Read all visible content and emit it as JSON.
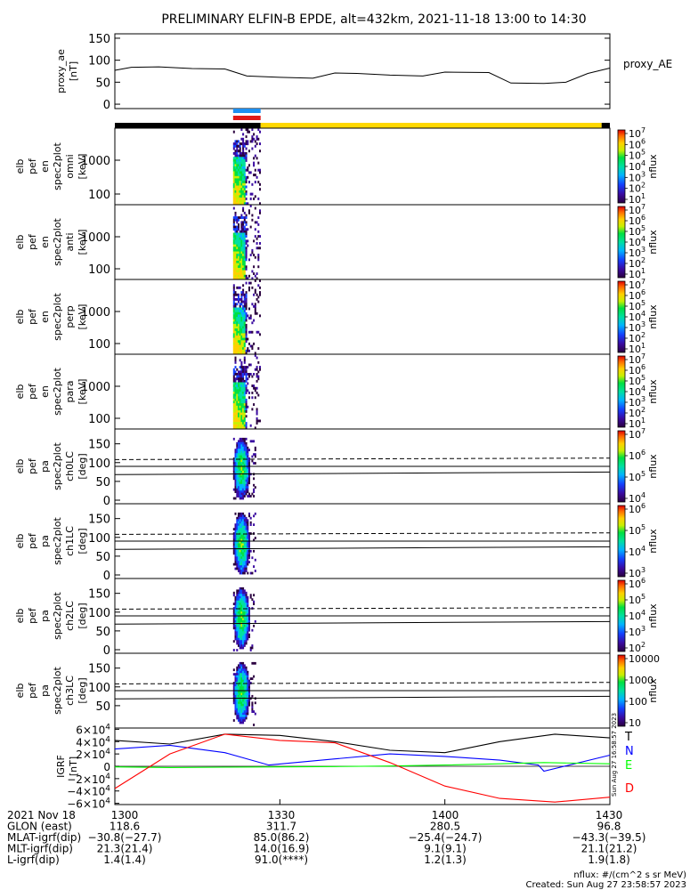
{
  "title": "PRELIMINARY ELFIN-B EPDE, alt=432km, 2021-11-18 13:00 to 14:30",
  "chart_data": [
    {
      "type": "line",
      "panel": "proxy_ae",
      "ylabel": [
        "proxy_ae",
        "[nT]"
      ],
      "series_label": "proxy_AE",
      "yticks": [
        "150",
        "100",
        "50",
        "0"
      ],
      "ylim": [
        -10,
        160
      ],
      "x_minutes": [
        0,
        3,
        8,
        14,
        20,
        24,
        30,
        36,
        40,
        44,
        50,
        56,
        60,
        68,
        72,
        78,
        82,
        86,
        90
      ],
      "values": [
        77,
        84,
        85,
        81,
        80,
        64,
        61,
        59,
        71,
        70,
        66,
        64,
        73,
        72,
        48,
        47,
        50,
        70,
        82
      ]
    },
    {
      "type": "heatmap",
      "panel": "omni",
      "ylabel": [
        "elb",
        "pef",
        "en",
        "spec2plot",
        "omni",
        "[keV]"
      ],
      "yticks": [
        "1000",
        "100"
      ],
      "cbar_ticks": [
        "10^7",
        "10^6",
        "10^5",
        "10^4",
        "10^3",
        "10^2",
        "10^1"
      ],
      "cbar_label": "nflux",
      "cbar_range": [
        1,
        7
      ]
    },
    {
      "type": "heatmap",
      "panel": "anti",
      "ylabel": [
        "elb",
        "pef",
        "en",
        "spec2plot",
        "anti",
        "[keV]"
      ],
      "yticks": [
        "1000",
        "100"
      ],
      "cbar_ticks": [
        "10^7",
        "10^6",
        "10^5",
        "10^4",
        "10^3",
        "10^2",
        "10^1"
      ],
      "cbar_label": "nflux",
      "cbar_range": [
        1,
        7
      ]
    },
    {
      "type": "heatmap",
      "panel": "perp",
      "ylabel": [
        "elb",
        "pef",
        "en",
        "spec2plot",
        "perp",
        "[keV]"
      ],
      "yticks": [
        "1000",
        "100"
      ],
      "cbar_ticks": [
        "10^7",
        "10^6",
        "10^5",
        "10^4",
        "10^3",
        "10^2",
        "10^1"
      ],
      "cbar_label": "nflux",
      "cbar_range": [
        1,
        7
      ]
    },
    {
      "type": "heatmap",
      "panel": "para",
      "ylabel": [
        "elb",
        "pef",
        "en",
        "spec2plot",
        "para",
        "[keV]"
      ],
      "yticks": [
        "1000",
        "100"
      ],
      "cbar_ticks": [
        "10^7",
        "10^6",
        "10^5",
        "10^4",
        "10^3",
        "10^2",
        "10^1"
      ],
      "cbar_label": "nflux",
      "cbar_range": [
        1,
        7
      ]
    },
    {
      "type": "heatmap",
      "panel": "ch0LC",
      "ylabel": [
        "elb",
        "pef",
        "pa",
        "spec2plot",
        "ch0LC",
        "[deg]"
      ],
      "yticks": [
        "150",
        "100",
        "50",
        "0"
      ],
      "cbar_ticks": [
        "10^7",
        "10^6",
        "10^5",
        "10^4"
      ],
      "cbar_label": "nflux",
      "cbar_range": [
        3.5,
        7
      ]
    },
    {
      "type": "heatmap",
      "panel": "ch1LC",
      "ylabel": [
        "elb",
        "pef",
        "pa",
        "spec2plot",
        "ch1LC",
        "[deg]"
      ],
      "yticks": [
        "150",
        "100",
        "50",
        "0"
      ],
      "cbar_ticks": [
        "10^6",
        "10^5",
        "10^4",
        "10^3"
      ],
      "cbar_label": "nflux",
      "cbar_range": [
        2.8,
        6.5
      ]
    },
    {
      "type": "heatmap",
      "panel": "ch2LC",
      "ylabel": [
        "elb",
        "pef",
        "pa",
        "spec2plot",
        "ch2LC",
        "[deg]"
      ],
      "yticks": [
        "150",
        "100",
        "50",
        "0"
      ],
      "cbar_ticks": [
        "10^6",
        "10^5",
        "10^4",
        "10^3",
        "10^2"
      ],
      "cbar_label": "nflux",
      "cbar_range": [
        1.8,
        6.5
      ]
    },
    {
      "type": "heatmap",
      "panel": "ch3LC",
      "ylabel": [
        "elb",
        "pef",
        "pa",
        "spec2plot",
        "ch3LC",
        "[deg]"
      ],
      "yticks": [
        "150",
        "100",
        "50"
      ],
      "cbar_ticks": [
        "10000",
        "1000",
        "100",
        "10"
      ],
      "cbar_label": "nflux",
      "cbar_range": [
        1,
        4.5
      ]
    },
    {
      "type": "line",
      "panel": "IGRF",
      "ylabel": [
        "IGRF",
        "[nT]"
      ],
      "yticks": [
        "6×10^4",
        "4×10^4",
        "2×10^4",
        "0",
        "−2×10^4",
        "−4×10^4",
        "−6×10^4"
      ],
      "ylim": [
        -62000,
        62000
      ],
      "series": [
        {
          "name": "T",
          "color": "#000000",
          "x_minutes": [
            0,
            10,
            20,
            30,
            40,
            50,
            60,
            70,
            80,
            90
          ],
          "values": [
            42000,
            36000,
            52000,
            50000,
            40000,
            26000,
            22000,
            40000,
            52000,
            46000
          ]
        },
        {
          "name": "N",
          "color": "#0000ff",
          "x_minutes": [
            0,
            10,
            20,
            28,
            40,
            50,
            60,
            70,
            77,
            78,
            90
          ],
          "values": [
            28000,
            34000,
            22000,
            2000,
            12000,
            20000,
            16000,
            10000,
            2000,
            -8000,
            18000
          ]
        },
        {
          "name": "E",
          "color": "#00ff00",
          "x_minutes": [
            0,
            10,
            20,
            30,
            40,
            50,
            60,
            70,
            78,
            90
          ],
          "values": [
            -1000,
            -2000,
            -1500,
            -1000,
            -500,
            500,
            2000,
            4000,
            6000,
            4000
          ]
        },
        {
          "name": "D",
          "color": "#ff0000",
          "x_minutes": [
            0,
            10,
            20,
            30,
            40,
            50,
            60,
            70,
            80,
            90
          ],
          "values": [
            -36000,
            20000,
            52000,
            42000,
            38000,
            6000,
            -32000,
            -52000,
            -58000,
            -50000
          ]
        }
      ]
    }
  ],
  "flight_bars": {
    "blue": "#1e8ff0",
    "red": "#e01818",
    "black": "#000000",
    "yellow": "#ffd800"
  },
  "footer": {
    "rows": [
      [
        "2021 Nov 18",
        "1300",
        "1330",
        "1400",
        "1430"
      ],
      [
        "GLON (east)",
        "118.6",
        "311.7",
        "280.5",
        "96.8"
      ],
      [
        "MLAT-igrf(dip)",
        "−30.8(−27.7)",
        "85.0(86.2)",
        "−25.4(−24.7)",
        "−43.3(−39.5)"
      ],
      [
        "MLT-igrf(dip)",
        "21.3(21.4)",
        "14.0(16.9)",
        "9.1(9.1)",
        "21.1(21.2)"
      ],
      [
        "L-igrf(dip)",
        "1.4(1.4)",
        "91.0(****)",
        "1.2(1.3)",
        "1.9(1.8)"
      ]
    ],
    "units_note": "nflux: #/(cm^2 s sr MeV)",
    "created": "Created: Sun Aug 27 23:58:57 2023",
    "side_stamp": "Sun Aug 27 16:58:57 2023"
  }
}
